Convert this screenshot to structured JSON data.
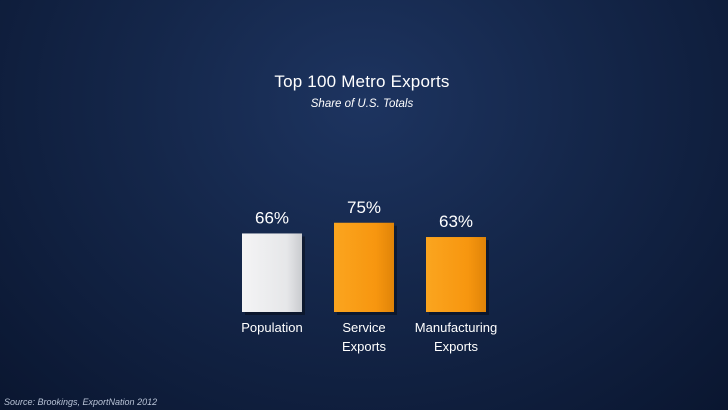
{
  "chart_data": {
    "type": "bar",
    "title": "Top 100 Metro Exports",
    "subtitle": "Share of U.S. Totals",
    "categories": [
      "Population",
      "Service Exports",
      "Manufacturing Exports"
    ],
    "category_lines": [
      [
        "Population"
      ],
      [
        "Service",
        "Exports"
      ],
      [
        "Manufacturing",
        "Exports"
      ]
    ],
    "values": [
      66,
      75,
      63
    ],
    "value_labels": [
      "66%",
      "75%",
      "63%"
    ],
    "bar_colors": [
      "#e9eaec",
      "#f79b13",
      "#f79b13"
    ],
    "ylim": [
      0,
      100
    ],
    "grid": false,
    "legend": "none"
  },
  "source": "Source: Brookings, ExportNation 2012",
  "colors": {
    "background": "#142649",
    "text": "#ffffff",
    "orange": "#f79b13",
    "white_bar": "#e9eaec"
  }
}
